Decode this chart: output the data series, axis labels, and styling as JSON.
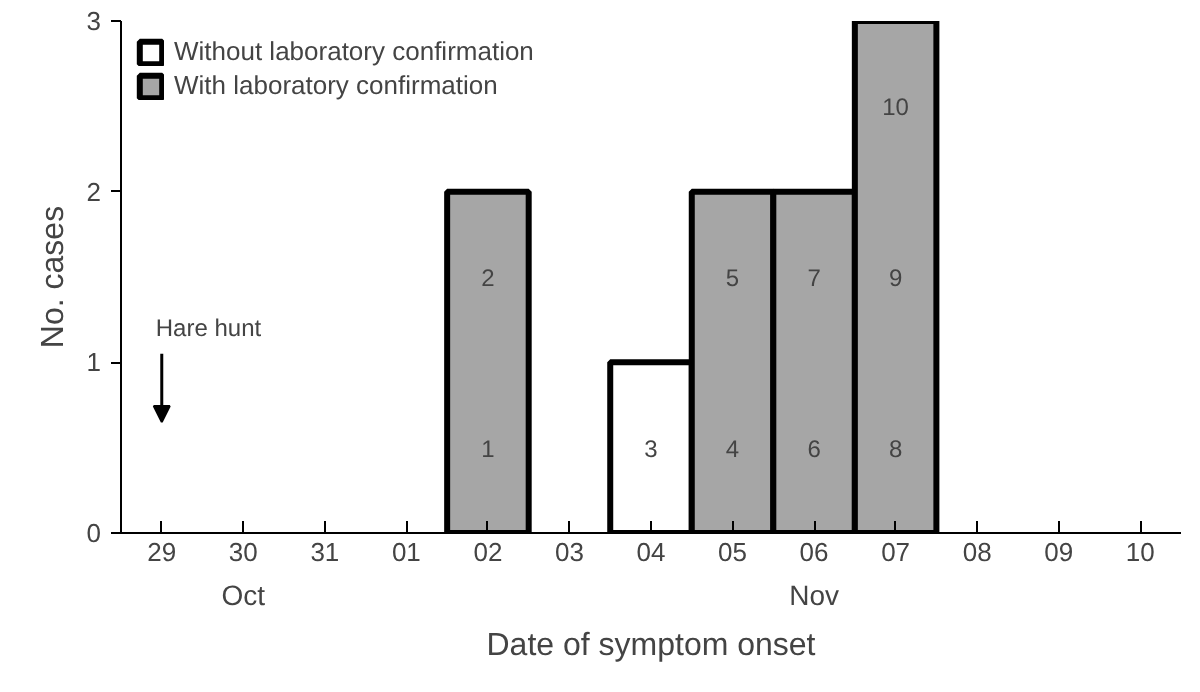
{
  "chart_data": {
    "type": "bar",
    "xlabel": "Date of symptom onset",
    "ylabel": "No. cases",
    "categories": [
      "29",
      "30",
      "31",
      "01",
      "02",
      "03",
      "04",
      "05",
      "06",
      "07",
      "08",
      "09",
      "10"
    ],
    "series": [
      {
        "name": "Without laboratory confirmation",
        "color": "#ffffff",
        "values": [
          0,
          0,
          0,
          0,
          0,
          0,
          1,
          0,
          0,
          0,
          0,
          0,
          0
        ]
      },
      {
        "name": "With laboratory confirmation",
        "color": "#a6a6a6",
        "values": [
          0,
          0,
          0,
          0,
          2,
          0,
          0,
          2,
          2,
          3,
          0,
          0,
          0
        ]
      }
    ],
    "ylim": [
      0,
      3
    ],
    "yticks": [
      0,
      1,
      2,
      3
    ],
    "grid": false,
    "legend": "top left",
    "annotations": [
      "Hare hunt",
      "Oct",
      "Nov",
      "1",
      "2",
      "3",
      "4",
      "5",
      "6",
      "7",
      "8",
      "9",
      "10"
    ]
  }
}
